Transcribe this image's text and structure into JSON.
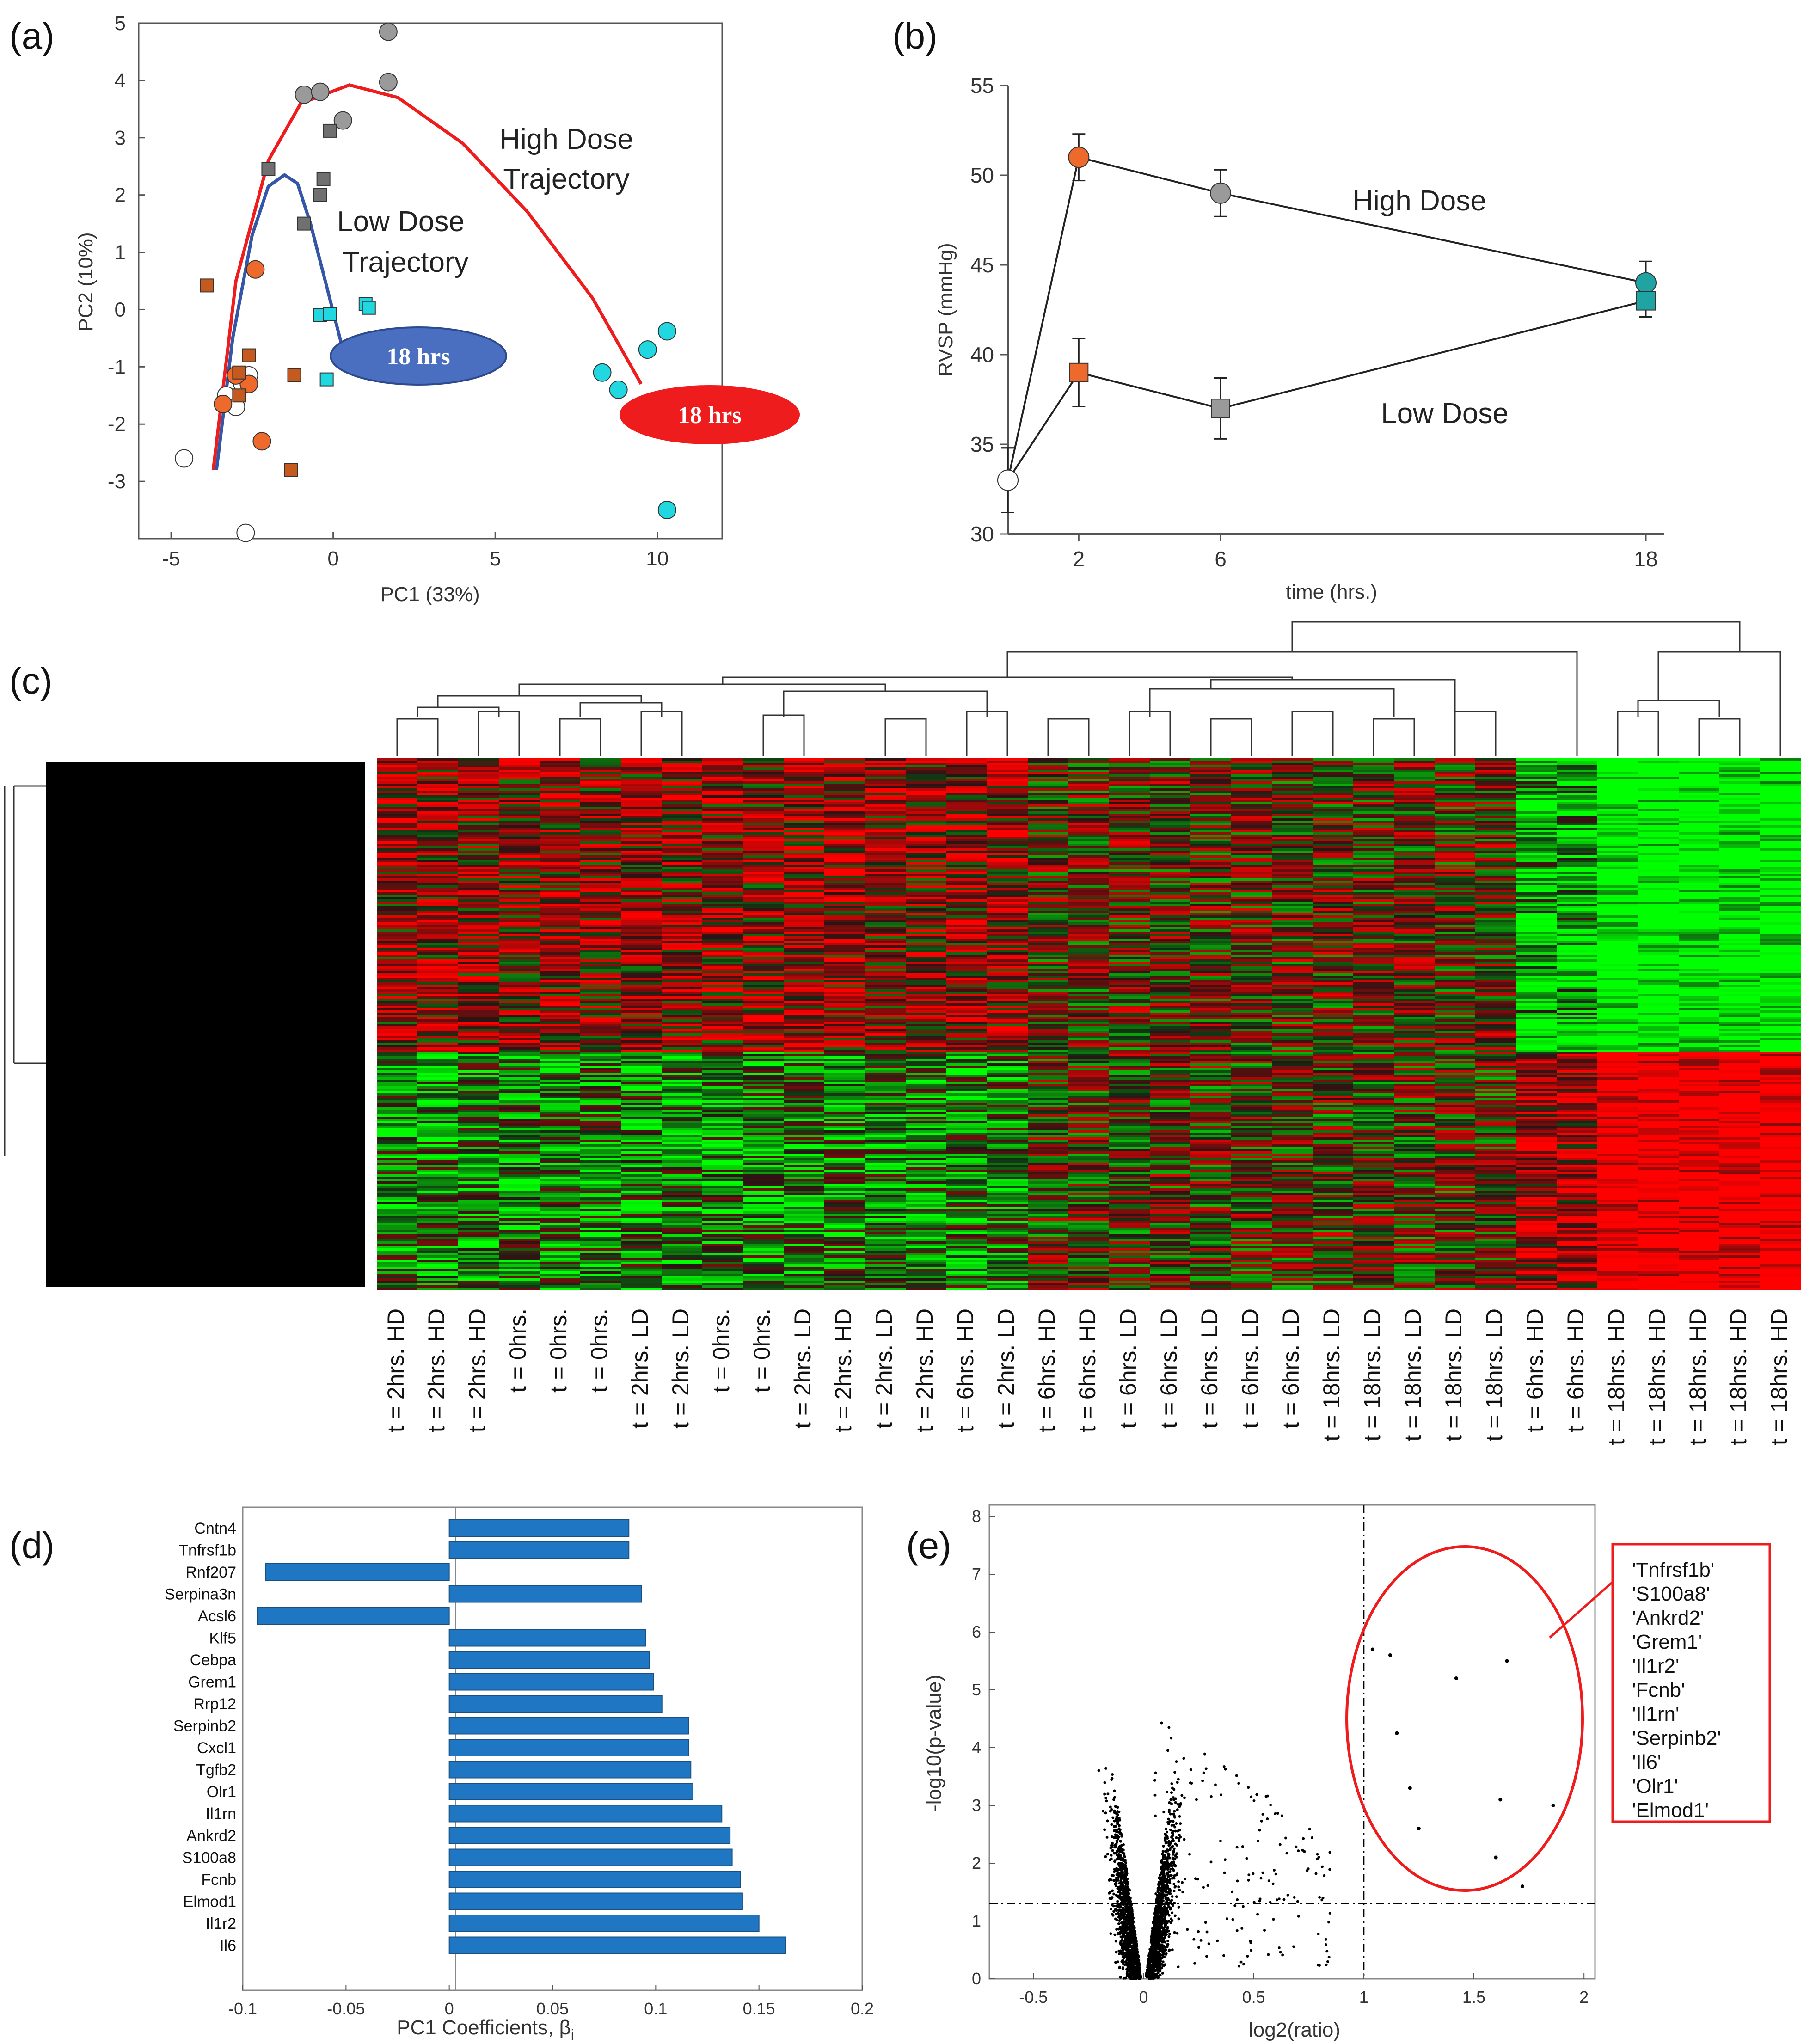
{
  "panels": {
    "a": {
      "label": "(a)"
    },
    "b": {
      "label": "(b)"
    },
    "c": {
      "label": "(c)"
    },
    "d": {
      "label": "(d)"
    },
    "e": {
      "label": "(e)"
    }
  },
  "colors": {
    "high_dose_line": "#ee1c1c",
    "low_dose_line": "#3556a6",
    "orange": "#ee6a2c",
    "gray": "#9a9a9a",
    "cyan": "#22d8e0",
    "brown": "#c65a1e",
    "teal": "#1fa3a3",
    "bar": "#1f77c4",
    "heat_red": "#ff1a1a",
    "heat_green": "#1aff1a"
  },
  "chart_data": [
    {
      "id": "a",
      "type": "scatter",
      "xlabel": "PC1 (33%)",
      "ylabel": "PC2 (10%)",
      "xlim": [
        -6,
        12
      ],
      "ylim": [
        -4,
        5
      ],
      "xticks": [
        -5,
        0,
        5,
        10
      ],
      "yticks": [
        -3,
        -2,
        -1,
        0,
        1,
        2,
        3,
        4,
        5
      ],
      "annotations": {
        "high_dose_l1": "High Dose",
        "high_dose_l2": "Trajectory",
        "low_dose_l1": "Low Dose",
        "low_dose_l2": "Trajectory",
        "low_end_label": "18 hrs",
        "high_end_label": "18 hrs"
      },
      "series": [
        {
          "name": "0 hrs",
          "marker": "circle",
          "fill": "#ffffff",
          "points": [
            [
              -4.6,
              -2.6
            ],
            [
              -3.3,
              -1.5
            ],
            [
              -3.0,
              -1.7
            ],
            [
              -2.8,
              -1.3
            ],
            [
              -2.6,
              -1.15
            ],
            [
              -2.7,
              -3.9
            ]
          ]
        },
        {
          "name": "2 hrs HD",
          "marker": "circle",
          "fill": "#ee6a2c",
          "points": [
            [
              -2.4,
              0.7
            ],
            [
              -2.6,
              -1.3
            ],
            [
              -3.0,
              -1.15
            ],
            [
              -3.4,
              -1.65
            ],
            [
              -2.2,
              -2.3
            ]
          ]
        },
        {
          "name": "2 hrs LD",
          "marker": "square",
          "fill": "#c65a1e",
          "points": [
            [
              -3.9,
              0.42
            ],
            [
              -2.6,
              -0.8
            ],
            [
              -2.9,
              -1.1
            ],
            [
              -2.9,
              -1.5
            ],
            [
              -1.2,
              -1.15
            ],
            [
              -1.3,
              -2.8
            ]
          ]
        },
        {
          "name": "6 hrs HD",
          "marker": "circle",
          "fill": "#9a9a9a",
          "points": [
            [
              -0.9,
              3.75
            ],
            [
              -0.4,
              3.8
            ],
            [
              0.3,
              3.3
            ],
            [
              1.7,
              4.85
            ],
            [
              1.7,
              3.97
            ]
          ]
        },
        {
          "name": "6 hrs LD",
          "marker": "square",
          "fill": "#707070",
          "points": [
            [
              -2.0,
              2.45
            ],
            [
              -0.3,
              2.28
            ],
            [
              -0.4,
              2.0
            ],
            [
              -0.1,
              3.12
            ],
            [
              -0.9,
              1.5
            ]
          ]
        },
        {
          "name": "18 hrs HD",
          "marker": "circle",
          "fill": "#22d8e0",
          "points": [
            [
              8.3,
              -1.1
            ],
            [
              8.8,
              -1.4
            ],
            [
              9.7,
              -0.7
            ],
            [
              10.3,
              -0.38
            ],
            [
              10.3,
              -3.5
            ]
          ]
        },
        {
          "name": "18 hrs LD",
          "marker": "square",
          "fill": "#22d8e0",
          "points": [
            [
              -0.4,
              -0.1
            ],
            [
              -0.1,
              -0.08
            ],
            [
              1.0,
              0.1
            ],
            [
              1.1,
              0.03
            ],
            [
              -0.2,
              -1.22
            ]
          ]
        }
      ],
      "curves": {
        "high_dose": [
          [
            -3.7,
            -2.8
          ],
          [
            -3.0,
            0.5
          ],
          [
            -2.0,
            2.6
          ],
          [
            -1.0,
            3.6
          ],
          [
            0.5,
            3.92
          ],
          [
            2.0,
            3.7
          ],
          [
            4.0,
            2.9
          ],
          [
            6.0,
            1.7
          ],
          [
            8.0,
            0.2
          ],
          [
            9.5,
            -1.3
          ]
        ],
        "low_dose": [
          [
            -3.6,
            -2.8
          ],
          [
            -3.1,
            -0.5
          ],
          [
            -2.5,
            1.3
          ],
          [
            -2.0,
            2.15
          ],
          [
            -1.5,
            2.35
          ],
          [
            -1.1,
            2.2
          ],
          [
            -0.7,
            1.5
          ],
          [
            -0.2,
            0.4
          ],
          [
            0.3,
            -0.7
          ]
        ]
      }
    },
    {
      "id": "b",
      "type": "line",
      "xlabel": "time (hrs.)",
      "ylabel": "RVSP (mmHg)",
      "xlim": [
        0,
        18
      ],
      "ylim": [
        30,
        55
      ],
      "xticks": [
        2,
        6,
        18
      ],
      "yticks": [
        30,
        35,
        40,
        45,
        50,
        55
      ],
      "annotations": {
        "high_label": "High Dose",
        "low_label": "Low Dose"
      },
      "series": [
        {
          "name": "High Dose",
          "x": [
            0,
            2,
            6,
            18
          ],
          "values": [
            33,
            51,
            49,
            44
          ],
          "err": [
            1.8,
            1.3,
            1.3,
            1.2
          ],
          "marker": "circle",
          "fills": [
            "#ffffff",
            "#ee6a2c",
            "#9a9a9a",
            "#1fa3a3"
          ]
        },
        {
          "name": "Low Dose",
          "x": [
            0,
            2,
            6,
            18
          ],
          "values": [
            33,
            39,
            37,
            43
          ],
          "err": [
            1.8,
            1.9,
            1.7,
            0.9
          ],
          "marker": "square",
          "fills": [
            "#ffffff",
            "#ee6a2c",
            "#9a9a9a",
            "#1fa3a3"
          ]
        }
      ]
    },
    {
      "id": "c",
      "type": "heatmap",
      "columns": [
        "t = 2hrs. HD",
        "t = 2hrs. HD",
        "t = 2hrs. HD",
        "t = 0hrs.",
        "t = 0hrs.",
        "t = 0hrs.",
        "t = 2hrs. LD",
        "t = 2hrs. LD",
        "t = 0hrs.",
        "t = 0hrs.",
        "t = 2hrs. LD",
        "t = 2hrs. HD",
        "t = 2hrs. LD",
        "t = 2hrs. HD",
        "t = 6hrs. HD",
        "t = 2hrs. LD",
        "t = 6hrs. HD",
        "t = 6hrs. HD",
        "t = 6hrs. LD",
        "t = 6hrs. LD",
        "t = 6hrs. LD",
        "t = 6hrs. LD",
        "t = 6hrs. LD",
        "t = 18hrs. LD",
        "t = 18hrs. LD",
        "t = 18hrs. LD",
        "t = 18hrs. LD",
        "t = 18hrs. LD",
        "t = 6hrs. HD",
        "t = 6hrs. HD",
        "t = 18hrs. HD",
        "t = 18hrs. HD",
        "t = 18hrs. HD",
        "t = 18hrs. HD",
        "t = 18hrs. HD"
      ]
    },
    {
      "id": "d",
      "type": "bar",
      "xlabel": "PC1 Coefficients, β",
      "xlabel_sub": "i",
      "xlim": [
        -0.1,
        0.2
      ],
      "xticks": [
        -0.1,
        -0.05,
        0,
        0.05,
        0.1,
        0.15,
        0.2
      ],
      "categories": [
        "Cntn4",
        "Tnfrsf1b",
        "Rnf207",
        "Serpina3n",
        "Acsl6",
        "Klf5",
        "Cebpa",
        "Grem1",
        "Rrp12",
        "Serpinb2",
        "Cxcl1",
        "Tgfb2",
        "Olr1",
        "Il1rn",
        "Ankrd2",
        "S100a8",
        "Fcnb",
        "Elmod1",
        "Il1r2",
        "Il6"
      ],
      "values": [
        0.087,
        0.087,
        -0.089,
        0.093,
        -0.093,
        0.095,
        0.097,
        0.099,
        0.103,
        0.116,
        0.116,
        0.117,
        0.118,
        0.132,
        0.136,
        0.137,
        0.141,
        0.142,
        0.15,
        0.163
      ]
    },
    {
      "id": "e",
      "type": "scatter",
      "xlabel": "log2(ratio)",
      "ylabel": "-log10(p-value)",
      "xlim": [
        -0.7,
        2.05
      ],
      "ylim": [
        0,
        8.2
      ],
      "xticks": [
        -0.5,
        0,
        0.5,
        1,
        1.5,
        2
      ],
      "yticks": [
        0,
        1,
        2,
        3,
        4,
        5,
        6,
        7,
        8
      ],
      "thresholds": {
        "x": 1,
        "y": 1.3
      },
      "highlight_points": [
        [
          1.04,
          5.7
        ],
        [
          1.12,
          5.6
        ],
        [
          1.15,
          4.25
        ],
        [
          1.21,
          3.3
        ],
        [
          1.25,
          2.6
        ],
        [
          1.42,
          5.2
        ],
        [
          1.62,
          3.1
        ],
        [
          1.65,
          5.5
        ],
        [
          1.6,
          2.1
        ],
        [
          1.86,
          3.0
        ],
        [
          1.72,
          1.6
        ]
      ],
      "highlight_genes": [
        "'Tnfrsf1b'",
        "'S100a8'",
        "'Ankrd2'",
        "'Grem1'",
        "'Il1r2'",
        "'Fcnb'",
        "'Il1rn'",
        "'Serpinb2'",
        "'Il6'",
        "'Olr1'",
        "'Elmod1'"
      ]
    }
  ]
}
